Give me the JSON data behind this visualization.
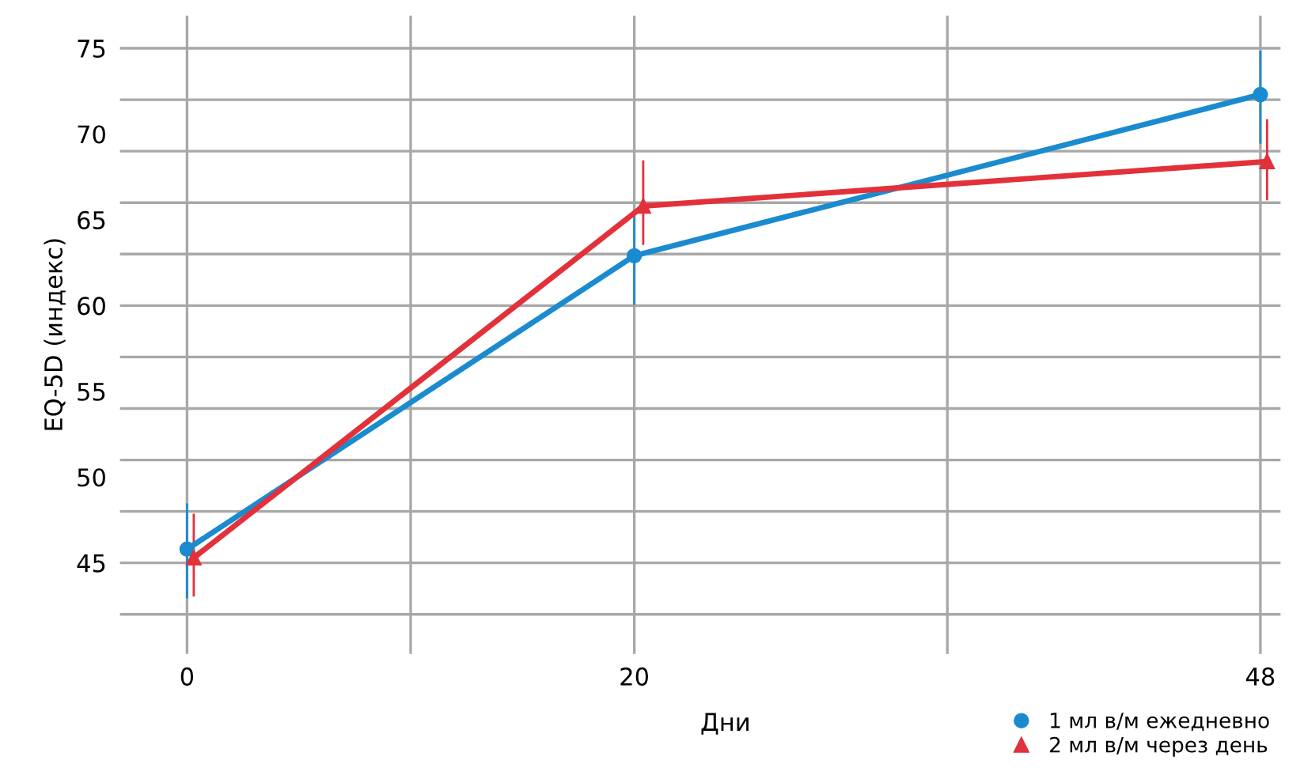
{
  "chart_data": {
    "type": "line",
    "xlabel": "Дни",
    "ylabel": "EQ-5D (индекс)",
    "xlim": [
      -3,
      48.9
    ],
    "ylim": [
      39.7,
      76.9
    ],
    "xticks": [
      0,
      20,
      48,
      {
        "value": 0,
        "label": null
      },
      {
        "value": 10,
        "label": null
      },
      {
        "value": 20,
        "label": null
      },
      {
        "value": 34,
        "label": null
      },
      {
        "value": 48,
        "label": null
      }
    ],
    "yticks": [
      45,
      50,
      55,
      60,
      65,
      70,
      75,
      {
        "value": 42,
        "label": null
      },
      {
        "value": 45,
        "label": null
      },
      {
        "value": 48,
        "label": null
      },
      {
        "value": 51,
        "label": null
      },
      {
        "value": 54,
        "label": null
      },
      {
        "value": 57,
        "label": null
      },
      {
        "value": 60,
        "label": null
      },
      {
        "value": 63,
        "label": null
      },
      {
        "value": 66,
        "label": null
      },
      {
        "value": 69,
        "label": null
      },
      {
        "value": 72,
        "label": null
      },
      {
        "value": 75,
        "label": null
      }
    ],
    "grid": true,
    "legend": "bottom right",
    "line_style": "solid",
    "series": [
      {
        "name": "1 мл в/м ежедневно",
        "color": "#1b8bd0",
        "marker": "circle",
        "x": [
          0,
          20,
          48
        ],
        "values": [
          45.8,
          62.9,
          72.3
        ],
        "errors": [
          [
            43.0,
            48.4
          ],
          [
            60.1,
            65.4
          ],
          [
            69.5,
            74.8
          ]
        ]
      },
      {
        "name": "2 мл в/м через день",
        "color": "#e2313a",
        "marker": "triangle",
        "x": [
          0.3,
          20.4,
          48.3
        ],
        "values": [
          45.3,
          65.8,
          68.4
        ],
        "errors": [
          [
            43.1,
            47.8
          ],
          [
            63.6,
            68.4
          ],
          [
            66.2,
            70.8
          ]
        ]
      }
    ]
  }
}
